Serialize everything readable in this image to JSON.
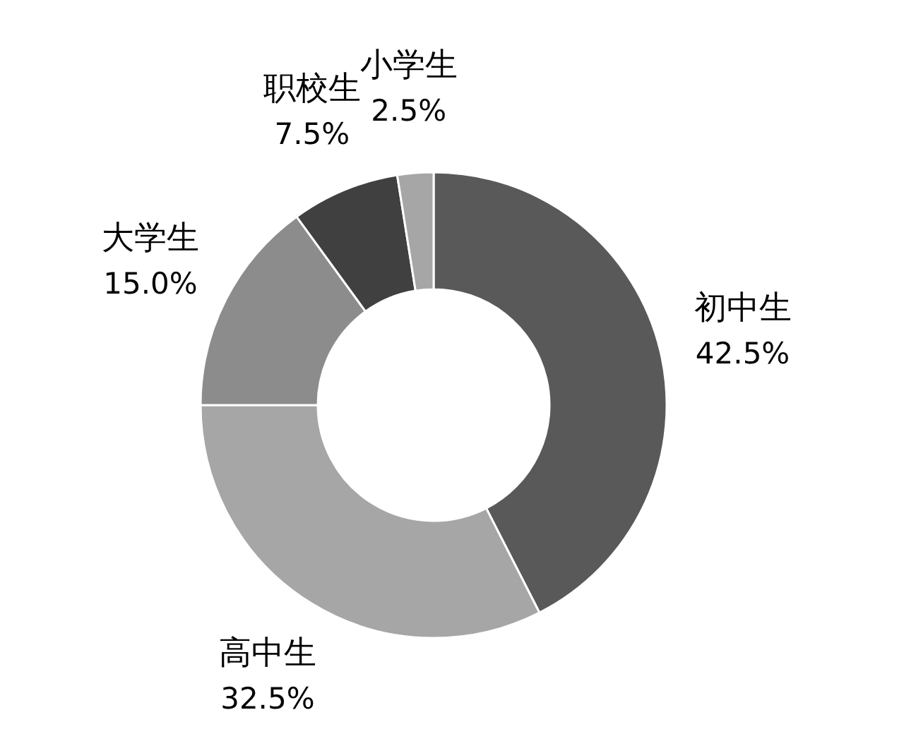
{
  "chart_data": {
    "type": "donut",
    "categories": [
      "初中生",
      "高中生",
      "大学生",
      "职校生",
      "小学生"
    ],
    "values": [
      42.5,
      32.5,
      15.0,
      7.5,
      2.5
    ],
    "value_labels": [
      "42.5%",
      "32.5%",
      "15.0%",
      "7.5%",
      "2.5%"
    ],
    "colors": [
      "#595959",
      "#a6a6a6",
      "#8c8c8c",
      "#404040",
      "#a6a6a6"
    ]
  }
}
